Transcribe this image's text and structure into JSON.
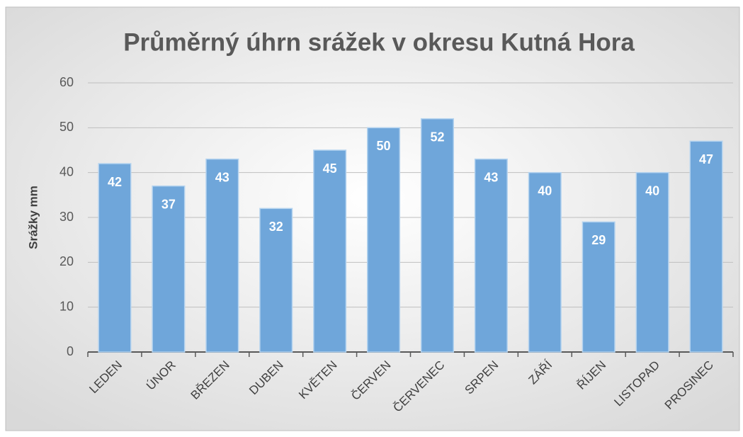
{
  "chart_data": {
    "type": "bar",
    "title": "Průměrný úhrn srážek v okresu Kutná Hora",
    "y_label": "Srážky mm",
    "categories": [
      "LEDEN",
      "ÚNOR",
      "BŘEZEN",
      "DUBEN",
      "KVĚTEN",
      "ČERVEN",
      "ČERVENEC",
      "SRPEN",
      "ZÁŘÍ",
      "ŘÍJEN",
      "LISTOPAD",
      "PROSINEC"
    ],
    "values": [
      42,
      37,
      43,
      32,
      45,
      50,
      52,
      43,
      40,
      29,
      40,
      47
    ],
    "color": "#6fa6da",
    "ylim": [
      0,
      60
    ],
    "yticks": [
      0,
      10,
      20,
      30,
      40,
      50,
      60
    ],
    "grid": true
  }
}
